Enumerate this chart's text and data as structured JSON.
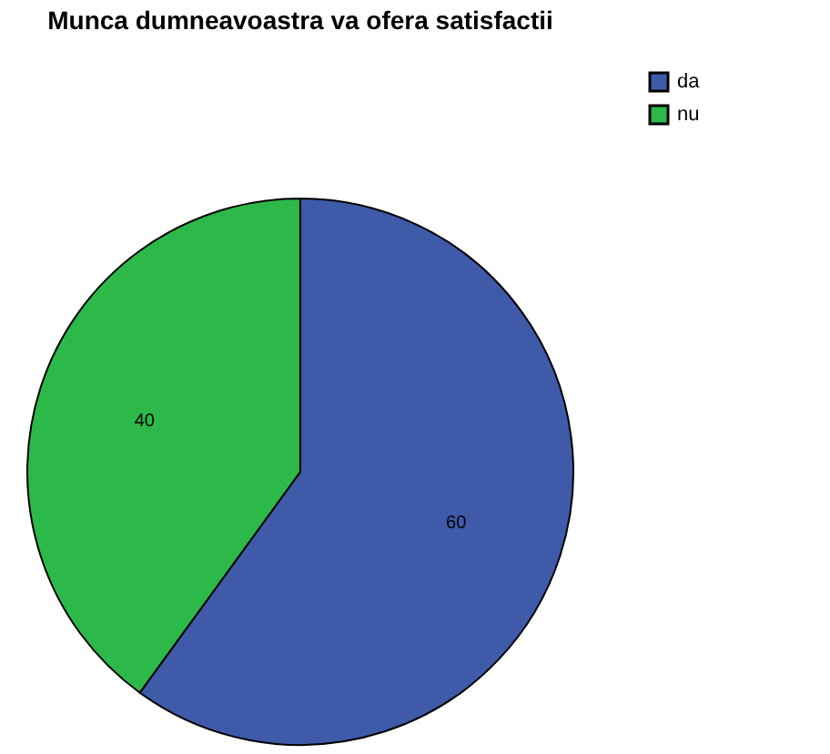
{
  "chart_data": {
    "type": "pie",
    "title": "Munca dumneavoastra va ofera satisfactii",
    "categories": [
      "da",
      "nu"
    ],
    "values": [
      60,
      40
    ],
    "colors": [
      "#3f5aa9",
      "#2db84a"
    ],
    "data_labels": true,
    "legend": "top right"
  }
}
